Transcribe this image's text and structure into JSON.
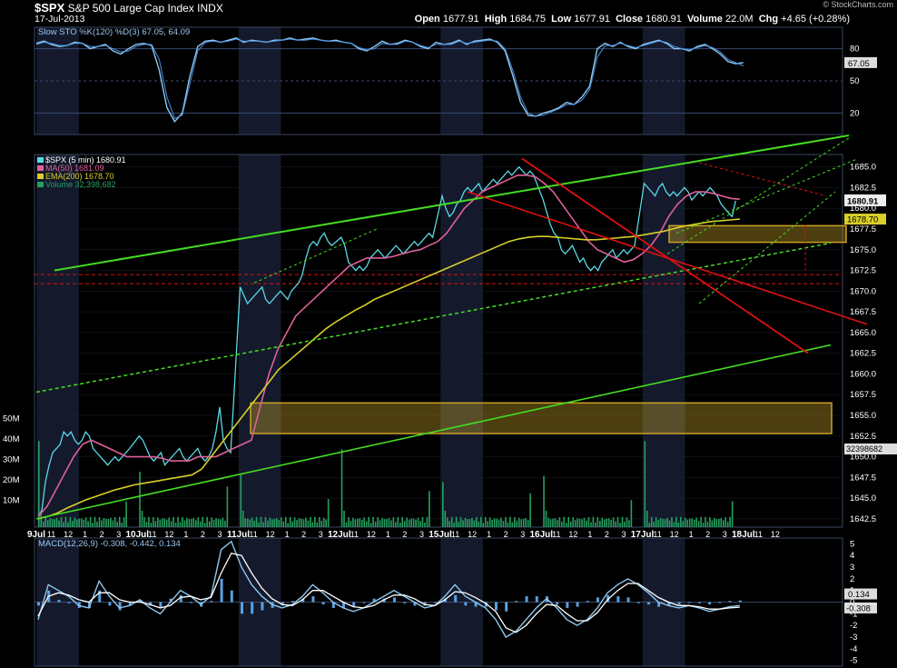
{
  "header": {
    "symbol": "$SPX",
    "name": "S&P 500 Large Cap Index",
    "exchange": "INDX",
    "date": "17-Jul-2013",
    "open_label": "Open",
    "open": "1677.91",
    "high_label": "High",
    "high": "1684.75",
    "low_label": "Low",
    "low": "1677.91",
    "close_label": "Close",
    "close": "1680.91",
    "volume_label": "Volume",
    "volume": "22.0M",
    "chg_label": "Chg",
    "chg": "+4.65 (+0.28%)",
    "credit": "© StockCharts.com"
  },
  "colors": {
    "price": "#5ad8e6",
    "ma50": "#e0609c",
    "ema200": "#d8cf2a",
    "volume": "#25a060",
    "trend_green": "#44dd22",
    "channel_red": "#e01010",
    "support_zone": "#c9a227",
    "sto": "#8ec8f0",
    "macd": "#5aa0e0",
    "signal": "#ffffff"
  },
  "chart_data": [
    {
      "type": "line",
      "panel": "stochastic",
      "legend": [
        "Slow STO %K(120) %D(3) 67.05, 64.09"
      ],
      "ylim": [
        0,
        100
      ],
      "yticks": [
        "20",
        "50",
        "80"
      ],
      "reference_lines": [
        20,
        50,
        80
      ],
      "last_values": [
        "67.05"
      ],
      "series": [
        {
          "name": "%K",
          "values": [
            85,
            87,
            84,
            82,
            83,
            86,
            85,
            80,
            82,
            84,
            78,
            75,
            80,
            84,
            85,
            83,
            60,
            25,
            12,
            20,
            55,
            82,
            87,
            88,
            86,
            88,
            90,
            86,
            88,
            87,
            86,
            88,
            88,
            90,
            88,
            89,
            90,
            88,
            87,
            88,
            86,
            85,
            80,
            78,
            82,
            87,
            84,
            85,
            88,
            86,
            82,
            80,
            86,
            84,
            85,
            88,
            84,
            87,
            88,
            89,
            86,
            78,
            55,
            30,
            18,
            17,
            20,
            22,
            25,
            30,
            28,
            35,
            45,
            80,
            85,
            82,
            86,
            82,
            80,
            84,
            86,
            88,
            85,
            80,
            80,
            78,
            82,
            84,
            80,
            75,
            68,
            66,
            67
          ]
        },
        {
          "name": "%D",
          "values": [
            84,
            86,
            85,
            83,
            83,
            85,
            85,
            82,
            82,
            83,
            80,
            77,
            78,
            82,
            84,
            84,
            70,
            35,
            15,
            18,
            48,
            78,
            86,
            87,
            86,
            87,
            89,
            87,
            87,
            87,
            86,
            87,
            88,
            89,
            88,
            88,
            89,
            88,
            87,
            87,
            86,
            85,
            81,
            79,
            80,
            85,
            84,
            84,
            87,
            86,
            83,
            81,
            84,
            84,
            84,
            87,
            85,
            86,
            87,
            88,
            87,
            80,
            60,
            35,
            20,
            17,
            18,
            21,
            24,
            28,
            28,
            32,
            42,
            72,
            83,
            83,
            85,
            83,
            81,
            83,
            85,
            87,
            86,
            82,
            80,
            79,
            81,
            83,
            81,
            77,
            70,
            67,
            64
          ]
        }
      ]
    },
    {
      "type": "line",
      "panel": "price",
      "ylim": [
        1641.5,
        1686.5
      ],
      "yticks": [
        "1642.5",
        "1645.0",
        "1647.5",
        "1650.0",
        "1652.5",
        "1655.0",
        "1657.5",
        "1660.0",
        "1662.5",
        "1665.0",
        "1667.5",
        "1670.0",
        "1672.5",
        "1675.0",
        "1677.5",
        "1680.0",
        "1682.5",
        "1685.0"
      ],
      "volume_yticks": [
        "10M",
        "20M",
        "30M",
        "40M",
        "50M"
      ],
      "last_values": [
        "1680.91",
        "1678.70",
        "32398682"
      ],
      "legend": [
        "$SPX (5 min) 1680.91",
        "MA(50) 1681.09",
        "EMA(200) 1678.70",
        "Volume 32,398,682"
      ],
      "x_ticks": [
        "9Jul",
        "11",
        "12",
        "1",
        "2",
        "3",
        "10Jul",
        "11",
        "12",
        "1",
        "2",
        "3",
        "11Jul",
        "11",
        "12",
        "1",
        "2",
        "3",
        "12Jul",
        "11",
        "12",
        "1",
        "2",
        "3",
        "15Jul",
        "11",
        "12",
        "1",
        "2",
        "3",
        "16Jul",
        "11",
        "12",
        "1",
        "2",
        "3",
        "17Jul",
        "11",
        "12",
        "1",
        "2",
        "3",
        "18Jul",
        "11",
        "12"
      ],
      "sessions": [
        {
          "label": "9Jul",
          "close": [
            1642.8,
            1643.5,
            1647,
            1649,
            1650.5,
            1651,
            1651.5,
            1653,
            1652.5,
            1653,
            1652,
            1651.5,
            1652,
            1653,
            1652.5,
            1651,
            1650.5,
            1650,
            1649.5,
            1649,
            1649.5,
            1650,
            1649.5,
            1650,
            1650.5,
            1651
          ]
        },
        {
          "label": "10Jul",
          "close": [
            1652.5,
            1652,
            1651,
            1650,
            1649.5,
            1650,
            1650.5,
            1649,
            1649.5,
            1650,
            1650.5,
            1651,
            1650,
            1649.5,
            1650,
            1650.5,
            1651,
            1650,
            1649.5,
            1650,
            1651,
            1653,
            1656,
            1652,
            1651,
            1650.5
          ]
        },
        {
          "label": "11Jul",
          "close": [
            1670.5,
            1669.5,
            1668.5,
            1669,
            1669.5,
            1670,
            1670.5,
            1669,
            1668.5,
            1669,
            1669.5,
            1670,
            1669.5,
            1669,
            1670,
            1670.5,
            1671,
            1672,
            1674,
            1675.5,
            1676,
            1675.5,
            1676.5,
            1677,
            1676,
            1675.5
          ]
        },
        {
          "label": "12Jul",
          "close": [
            1676.5,
            1675.5,
            1673.5,
            1673,
            1672.5,
            1673,
            1672.5,
            1673,
            1674,
            1674.5,
            1675,
            1674.5,
            1674,
            1674.5,
            1675,
            1675.5,
            1675,
            1674.5,
            1675,
            1675.5,
            1676,
            1675.5,
            1676,
            1676.5,
            1677,
            1676.5
          ]
        },
        {
          "label": "15Jul",
          "close": [
            1681.5,
            1680,
            1679,
            1679.5,
            1680.5,
            1681,
            1682,
            1682.5,
            1682,
            1682.5,
            1683,
            1682,
            1682.5,
            1683,
            1683.5,
            1683,
            1683.5,
            1684,
            1684.5,
            1684,
            1684.5,
            1685,
            1684.5,
            1684,
            1684.5,
            1684
          ]
        },
        {
          "label": "16Jul",
          "close": [
            1681,
            1679.5,
            1678,
            1677,
            1676.5,
            1675,
            1674.5,
            1675,
            1675.5,
            1674.5,
            1673.5,
            1674,
            1673,
            1672.5,
            1673,
            1672.5,
            1673.5,
            1674,
            1674.5,
            1675,
            1674,
            1674.5,
            1675,
            1674.5,
            1675,
            1675.5
          ]
        },
        {
          "label": "17Jul",
          "close": [
            1683,
            1682.5,
            1682,
            1681.5,
            1682.5,
            1683,
            1682,
            1681.5,
            1682,
            1681.5,
            1682,
            1682.5,
            1682,
            1681,
            1681.5,
            1682,
            1681.5,
            1682,
            1682.5,
            1682,
            1681.5,
            1680.5,
            1680,
            1679.5,
            1679,
            1680.91
          ]
        }
      ],
      "series": [
        {
          "name": "MA(50)",
          "values": [
            1642.8,
            1644,
            1646,
            1648,
            1650,
            1651.5,
            1652,
            1651.5,
            1651,
            1650.5,
            1650,
            1650,
            1650,
            1650,
            1649.8,
            1649.5,
            1649.5,
            1649.5,
            1650,
            1650,
            1650,
            1650.5,
            1651,
            1651.5,
            1652,
            1656,
            1660,
            1663,
            1665,
            1667,
            1668,
            1669,
            1670,
            1671,
            1672,
            1673,
            1673.5,
            1674,
            1674,
            1674,
            1674.2,
            1674.5,
            1674.8,
            1675,
            1675.5,
            1676,
            1677,
            1678.5,
            1680,
            1681,
            1682,
            1682.5,
            1683,
            1683.5,
            1684,
            1684,
            1683.8,
            1683,
            1682,
            1680.5,
            1679,
            1677.5,
            1676,
            1675,
            1674.5,
            1674,
            1673.5,
            1673.8,
            1674.5,
            1675.5,
            1677,
            1679,
            1680.5,
            1681.5,
            1682,
            1682,
            1681.8,
            1681.5,
            1681.2,
            1681.1
          ]
        },
        {
          "name": "EMA(200)",
          "values": [
            1642.5,
            1642.8,
            1643.2,
            1643.8,
            1644.3,
            1644.8,
            1645.2,
            1645.6,
            1646,
            1646.3,
            1646.6,
            1646.8,
            1647,
            1647.2,
            1647.4,
            1647.6,
            1647.8,
            1648.5,
            1650,
            1651.5,
            1653,
            1654.5,
            1656,
            1657.5,
            1659,
            1660.5,
            1661.5,
            1662.5,
            1663.5,
            1664.5,
            1665.5,
            1666.3,
            1667,
            1667.7,
            1668.3,
            1669,
            1669.5,
            1670,
            1670.5,
            1671,
            1671.5,
            1672,
            1672.5,
            1673,
            1673.5,
            1674,
            1674.5,
            1675,
            1675.5,
            1676,
            1676.3,
            1676.5,
            1676.6,
            1676.6,
            1676.5,
            1676.4,
            1676.3,
            1676.2,
            1676.2,
            1676.3,
            1676.4,
            1676.5,
            1676.6,
            1676.8,
            1677,
            1677.2,
            1677.5,
            1677.8,
            1678,
            1678.2,
            1678.4,
            1678.5,
            1678.6,
            1678.7
          ]
        }
      ],
      "volume_spikes_M": [
        42,
        23,
        27,
        36,
        26,
        25,
        38,
        32,
        22,
        30,
        25,
        24
      ]
    },
    {
      "type": "line",
      "panel": "macd",
      "legend": [
        "MACD(12,26,9) -0.308, -0.442, 0.134"
      ],
      "ylim": [
        -5.5,
        5.5
      ],
      "yticks": [
        "-5",
        "-4",
        "-3",
        "-2",
        "-1",
        "0",
        "1",
        "2",
        "3",
        "4",
        "5"
      ],
      "last_values": [
        "0.134",
        "-0.308"
      ],
      "series": [
        {
          "name": "MACD",
          "values": [
            -1.5,
            1.5,
            1,
            0.5,
            -0.3,
            -0.5,
            1.8,
            0.5,
            -0.5,
            -0.3,
            0.2,
            -0.5,
            -1,
            0,
            1,
            0.5,
            -0.2,
            0.5,
            4.5,
            5.2,
            3,
            1.5,
            0.5,
            -0.2,
            -0.5,
            -0.2,
            0.5,
            1.5,
            0.8,
            0,
            -0.5,
            -0.8,
            -0.5,
            0,
            0.5,
            1,
            0.5,
            0,
            -0.5,
            -0.3,
            0.5,
            1.5,
            0.5,
            0,
            -0.5,
            -1.5,
            -3,
            -2.5,
            -1.5,
            -0.5,
            0.3,
            -0.5,
            -1.5,
            -2,
            -1.5,
            -0.5,
            0.8,
            1.5,
            2,
            1.5,
            0.8,
            0,
            -0.3,
            -0.5,
            -0.3,
            -0.5,
            -0.8,
            -0.6,
            -0.4,
            -0.3
          ]
        },
        {
          "name": "Signal",
          "values": [
            -1.2,
            0.5,
            0.8,
            0.6,
            0.2,
            0,
            0.8,
            0.8,
            0.2,
            0,
            0,
            -0.2,
            -0.5,
            -0.3,
            0.4,
            0.5,
            0.2,
            0.4,
            2.5,
            4.2,
            4,
            2.5,
            1.2,
            0.3,
            -0.2,
            -0.3,
            0.2,
            1,
            1,
            0.5,
            0,
            -0.4,
            -0.5,
            -0.3,
            0.2,
            0.6,
            0.6,
            0.3,
            -0.2,
            -0.3,
            0.2,
            0.9,
            0.8,
            0.4,
            -0.1,
            -0.8,
            -2.2,
            -2.6,
            -2,
            -1,
            -0.2,
            -0.3,
            -1,
            -1.6,
            -1.6,
            -0.9,
            0.2,
            1,
            1.6,
            1.6,
            1,
            0.4,
            0,
            -0.3,
            -0.3,
            -0.4,
            -0.6,
            -0.6,
            -0.5,
            -0.44
          ]
        }
      ]
    }
  ]
}
